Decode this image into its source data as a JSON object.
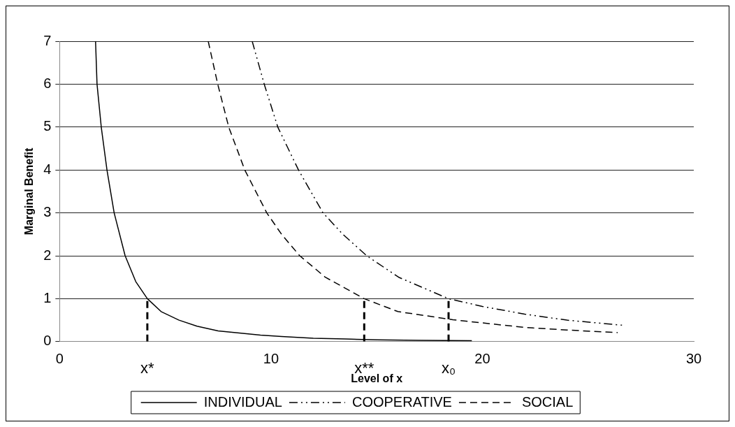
{
  "chart_data": {
    "type": "line",
    "xlabel": "Level of x",
    "ylabel": "Marginal Benefit",
    "xlim": [
      0,
      30
    ],
    "xticks": [
      0,
      10,
      20,
      30
    ],
    "ylim": [
      0,
      7
    ],
    "yticks": [
      0,
      1,
      2,
      3,
      4,
      5,
      6,
      7
    ],
    "grid": "y",
    "legend": "bottom",
    "marker": "none",
    "series": [
      {
        "name": "INDIVIDUAL",
        "color": "#000000",
        "line_style": "solid",
        "x": [
          1.7,
          1.77,
          1.97,
          2.24,
          2.58,
          3.1,
          3.6,
          4.15,
          4.8,
          5.65,
          6.5,
          7.5,
          8.5,
          9.5,
          10.5,
          12,
          13.5,
          15,
          17,
          19.5
        ],
        "values": [
          7,
          6,
          5,
          4,
          3,
          2,
          1.4,
          1,
          0.7,
          0.5,
          0.36,
          0.25,
          0.2,
          0.15,
          0.12,
          0.08,
          0.06,
          0.04,
          0.03,
          0.02
        ]
      },
      {
        "name": "COOPERATIVE",
        "color": "#000000",
        "line_style": "dashdot",
        "x": [
          9.11,
          9.68,
          10.32,
          11.3,
          12.46,
          13.4,
          14.53,
          16.04,
          18.4,
          20,
          22,
          24,
          26.66
        ],
        "values": [
          7,
          6,
          5,
          4,
          3,
          2.5,
          2,
          1.5,
          1,
          0.82,
          0.64,
          0.5,
          0.38
        ]
      },
      {
        "name": "SOCIAL",
        "color": "#000000",
        "line_style": "dashed",
        "x": [
          7.03,
          7.48,
          8,
          8.76,
          9.8,
          10.5,
          11.36,
          12.57,
          14.41,
          16,
          18.6,
          22,
          24,
          26.4
        ],
        "values": [
          7,
          6,
          5,
          4,
          3,
          2.5,
          2,
          1.5,
          1,
          0.7,
          0.51,
          0.33,
          0.27,
          0.21
        ]
      },
      {
        "color": "#000000",
        "line_style": "dashed",
        "x": [
          4.15,
          4.15
        ],
        "values": [
          0,
          1
        ]
      },
      {
        "color": "#000000",
        "line_style": "dashed",
        "x": [
          14.41,
          14.41
        ],
        "values": [
          0,
          1
        ]
      },
      {
        "color": "#000000",
        "line_style": "dashed",
        "x": [
          18.4,
          18.4
        ],
        "values": [
          0,
          1
        ]
      }
    ],
    "annotations": [
      {
        "text": "x*",
        "x": 4.15,
        "y": 0
      },
      {
        "text": "x**",
        "x": 14.41,
        "y": 0
      },
      {
        "text": "x₀",
        "x": 18.4,
        "y": 0
      }
    ]
  }
}
